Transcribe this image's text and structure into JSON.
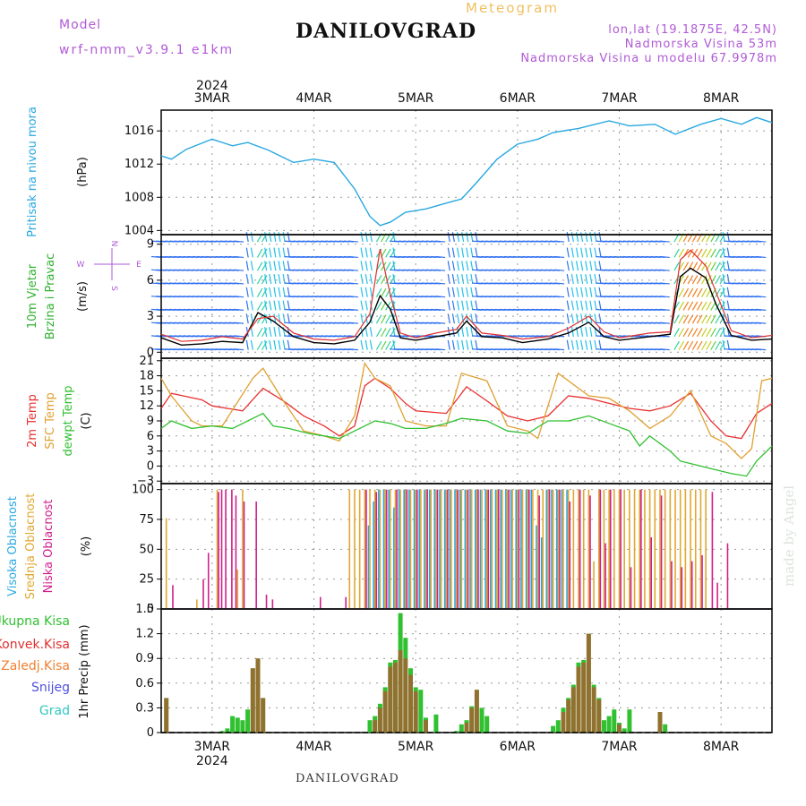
{
  "header": {
    "model_label": "Model",
    "model_name": "wrf-nmm_v3.9.1  e1km",
    "station": "DANILOVGRAD",
    "chart_kind": "Meteogram",
    "coords": "lon,lat (19.1875E, 42.5N)",
    "altitude": "Nadmorska Visina 53m",
    "model_altitude": "Nadmorska Visina u modelu 67.9978m",
    "year": "2024",
    "credit": "made by Angel",
    "footer": "DANILOVGRAD"
  },
  "chart_data": [
    {
      "type": "line",
      "title": "Pritisak na nivou mora",
      "ylabel": "(hPa)",
      "ylim": [
        1003.5,
        1018.5
      ],
      "yticks": [
        1004,
        1008,
        1012,
        1016
      ],
      "categories": [
        "3MAR",
        "4MAR",
        "5MAR",
        "6MAR",
        "7MAR",
        "8MAR"
      ],
      "series": [
        {
          "color": "#29a8e0",
          "x": [
            2.5,
            2.6,
            2.75,
            3.0,
            3.2,
            3.35,
            3.55,
            3.8,
            4.0,
            4.2,
            4.4,
            4.55,
            4.65,
            4.75,
            4.9,
            5.1,
            5.3,
            5.45,
            5.6,
            5.8,
            6.0,
            6.2,
            6.35,
            6.6,
            6.9,
            7.1,
            7.35,
            7.55,
            7.8,
            8.0,
            8.2,
            8.35,
            8.5
          ],
          "y": [
            1013.0,
            1012.6,
            1013.8,
            1015.0,
            1014.2,
            1014.6,
            1013.7,
            1012.2,
            1012.6,
            1012.2,
            1009.0,
            1005.7,
            1004.6,
            1005.0,
            1006.2,
            1006.6,
            1007.3,
            1007.8,
            1009.8,
            1012.6,
            1014.4,
            1015.0,
            1015.8,
            1016.3,
            1017.2,
            1016.6,
            1016.8,
            1015.6,
            1016.8,
            1017.5,
            1016.8,
            1017.6,
            1017.0
          ]
        }
      ]
    },
    {
      "type": "line",
      "title": "10m Vjetar Brzina i Pravac",
      "ylabel": "(m/s)",
      "ylim": [
        -0.5,
        9.8
      ],
      "yticks": [
        0,
        3,
        6,
        9
      ],
      "compass": [
        "N",
        "W",
        "E",
        "S"
      ],
      "barb_colors": [
        "#8a2be2",
        "#3070f0",
        "#20c0e8",
        "#30d0a0",
        "#60d040",
        "#c0d020",
        "#f08020",
        "#e02020"
      ],
      "series": [
        {
          "name": "speed",
          "color": "#000000",
          "x": [
            2.5,
            2.7,
            2.9,
            3.1,
            3.3,
            3.45,
            3.6,
            3.8,
            4.0,
            4.2,
            4.4,
            4.55,
            4.65,
            4.75,
            4.85,
            5.0,
            5.2,
            5.4,
            5.5,
            5.65,
            5.85,
            6.05,
            6.3,
            6.5,
            6.7,
            6.85,
            7.0,
            7.3,
            7.5,
            7.6,
            7.7,
            7.85,
            7.95,
            8.1,
            8.3,
            8.5
          ],
          "y": [
            1.2,
            0.6,
            0.7,
            0.9,
            0.8,
            3.3,
            2.6,
            1.3,
            0.8,
            0.7,
            1.0,
            2.5,
            4.7,
            3.6,
            1.2,
            1.0,
            1.3,
            1.6,
            2.6,
            1.3,
            1.2,
            0.8,
            1.1,
            1.6,
            2.5,
            1.3,
            1.0,
            1.3,
            1.5,
            6.3,
            7.0,
            6.2,
            4.0,
            1.4,
            1.0,
            1.1
          ]
        },
        {
          "name": "gust",
          "color": "#e03030",
          "x": [
            2.5,
            2.7,
            2.9,
            3.1,
            3.3,
            3.45,
            3.6,
            3.8,
            4.0,
            4.2,
            4.4,
            4.55,
            4.65,
            4.75,
            4.85,
            5.0,
            5.2,
            5.4,
            5.5,
            5.65,
            5.85,
            6.05,
            6.3,
            6.5,
            6.7,
            6.85,
            7.0,
            7.3,
            7.5,
            7.6,
            7.7,
            7.85,
            7.95,
            8.1,
            8.3,
            8.5
          ],
          "y": [
            1.5,
            0.9,
            1.0,
            1.3,
            1.1,
            2.8,
            3.0,
            1.6,
            1.1,
            1.0,
            1.3,
            3.2,
            8.6,
            4.8,
            1.6,
            1.2,
            1.6,
            1.9,
            3.0,
            1.6,
            1.4,
            1.1,
            1.3,
            2.0,
            3.0,
            1.7,
            1.2,
            1.6,
            1.7,
            7.7,
            8.5,
            7.2,
            5.0,
            1.8,
            1.2,
            1.4
          ]
        }
      ]
    },
    {
      "type": "line",
      "title": "2m Temp / SFC Temp / dewpt Temp",
      "ylabel": "(C)",
      "ylim": [
        -3.5,
        21.5
      ],
      "yticks": [
        -3,
        0,
        3,
        6,
        9,
        12,
        15,
        18,
        21
      ],
      "series": [
        {
          "name": "2m Temp",
          "color": "#e83030",
          "x": [
            2.5,
            2.6,
            2.9,
            3.0,
            3.3,
            3.5,
            3.7,
            3.9,
            4.1,
            4.25,
            4.4,
            4.5,
            4.6,
            4.75,
            4.9,
            5.0,
            5.3,
            5.5,
            5.7,
            5.9,
            6.1,
            6.3,
            6.5,
            6.7,
            6.9,
            7.1,
            7.3,
            7.5,
            7.7,
            7.9,
            8.05,
            8.2,
            8.35,
            8.5
          ],
          "y": [
            11.5,
            14.5,
            13.2,
            12.0,
            11.0,
            15.5,
            13.0,
            10.0,
            8.0,
            6.0,
            8.0,
            16.0,
            17.5,
            15.5,
            12.5,
            11.0,
            10.5,
            15.8,
            13.0,
            10.0,
            9.0,
            10.0,
            14.0,
            13.5,
            12.5,
            11.5,
            11.0,
            12.0,
            14.5,
            9.0,
            6.0,
            5.5,
            10.5,
            12.5
          ]
        },
        {
          "name": "SFC Temp",
          "color": "#e0a030",
          "x": [
            2.5,
            2.6,
            2.8,
            2.9,
            3.1,
            3.4,
            3.5,
            3.7,
            3.9,
            4.1,
            4.25,
            4.4,
            4.5,
            4.6,
            4.75,
            4.9,
            5.1,
            5.3,
            5.45,
            5.7,
            5.9,
            6.1,
            6.2,
            6.3,
            6.4,
            6.7,
            6.9,
            7.1,
            7.3,
            7.5,
            7.7,
            7.9,
            8.05,
            8.2,
            8.3,
            8.4,
            8.5
          ],
          "y": [
            17.5,
            14.0,
            9.0,
            8.0,
            8.0,
            17.5,
            19.5,
            13.0,
            7.0,
            6.0,
            5.0,
            10.0,
            20.5,
            17.5,
            16.0,
            9.0,
            8.0,
            8.0,
            18.5,
            17.0,
            8.0,
            7.0,
            5.5,
            12.0,
            18.5,
            14.0,
            13.5,
            11.0,
            7.5,
            10.0,
            15.0,
            6.0,
            4.5,
            1.5,
            3.5,
            17.0,
            17.5
          ]
        },
        {
          "name": "dewpt Temp",
          "color": "#30c030",
          "x": [
            2.5,
            2.6,
            2.8,
            3.0,
            3.2,
            3.5,
            3.6,
            3.75,
            3.95,
            4.1,
            4.25,
            4.4,
            4.6,
            4.75,
            4.9,
            5.1,
            5.3,
            5.45,
            5.7,
            5.9,
            6.1,
            6.3,
            6.5,
            6.7,
            6.9,
            7.1,
            7.2,
            7.3,
            7.5,
            7.6,
            7.7,
            7.9,
            8.1,
            8.25,
            8.35,
            8.5
          ],
          "y": [
            7.5,
            9.0,
            7.5,
            8.0,
            7.5,
            10.5,
            8.0,
            7.5,
            6.5,
            6.0,
            5.5,
            7.0,
            9.0,
            8.5,
            7.5,
            7.5,
            8.5,
            9.5,
            9.0,
            7.0,
            6.5,
            9.0,
            9.0,
            10.0,
            8.5,
            7.0,
            4.0,
            6.0,
            3.0,
            1.0,
            0.5,
            -0.5,
            -1.5,
            -2.0,
            1.0,
            4.0
          ]
        }
      ]
    },
    {
      "type": "bar",
      "title": "Visoka Oblacnost / Srednja Oblacnost / Niska Oblacnost",
      "ylabel": "(%)",
      "ylim": [
        0,
        105
      ],
      "yticks": [
        0,
        25,
        50,
        75,
        100
      ],
      "series": [
        {
          "name": "Visoka Oblacnost",
          "color": "#29a8e0",
          "x": [
            4.55,
            4.6,
            4.65,
            4.7,
            4.75,
            4.8,
            4.85,
            4.9,
            4.95,
            5.0,
            5.05,
            5.1,
            5.15,
            5.2,
            5.25,
            5.3,
            5.35,
            5.4,
            5.45,
            5.5,
            5.55,
            5.6,
            5.65,
            5.7,
            5.75,
            5.8,
            5.85,
            5.9,
            5.95,
            6.0,
            6.05,
            6.1,
            6.15,
            6.2,
            6.25,
            6.3,
            6.35,
            6.4,
            6.45,
            6.5
          ],
          "y": [
            70,
            90,
            100,
            100,
            100,
            85,
            100,
            100,
            100,
            100,
            100,
            100,
            100,
            100,
            100,
            100,
            100,
            100,
            100,
            100,
            100,
            100,
            100,
            100,
            100,
            100,
            100,
            100,
            100,
            100,
            100,
            100,
            100,
            70,
            60,
            100,
            100,
            100,
            100,
            100
          ]
        },
        {
          "name": "Srednja Oblacnost",
          "color": "#e0a830",
          "x": [
            2.55,
            2.85,
            3.05,
            3.25,
            3.3,
            4.35,
            4.4,
            4.45,
            4.5,
            4.55,
            4.6,
            4.65,
            4.7,
            4.75,
            4.8,
            4.85,
            4.9,
            4.95,
            5.0,
            5.05,
            5.1,
            5.15,
            5.2,
            5.25,
            5.3,
            5.35,
            5.4,
            5.45,
            5.5,
            5.55,
            5.6,
            5.65,
            5.7,
            5.75,
            5.8,
            5.85,
            5.9,
            5.95,
            6.0,
            6.05,
            6.1,
            6.15,
            6.2,
            6.25,
            6.3,
            6.35,
            6.4,
            6.45,
            6.5,
            6.55,
            6.6,
            6.65,
            6.7,
            6.75,
            6.8,
            6.85,
            6.9,
            6.95,
            7.0,
            7.05,
            7.1,
            7.15,
            7.2,
            7.25,
            7.3,
            7.35,
            7.4,
            7.45,
            7.5,
            7.55,
            7.6,
            7.65,
            7.7,
            7.75,
            7.8,
            7.85
          ],
          "y": [
            76,
            8,
            100,
            33,
            100,
            100,
            100,
            100,
            100,
            100,
            100,
            100,
            100,
            100,
            100,
            100,
            100,
            100,
            100,
            100,
            100,
            100,
            100,
            100,
            100,
            100,
            100,
            100,
            100,
            100,
            100,
            100,
            100,
            100,
            100,
            100,
            100,
            100,
            100,
            100,
            100,
            100,
            100,
            100,
            100,
            100,
            100,
            100,
            100,
            100,
            100,
            100,
            100,
            40,
            100,
            100,
            100,
            100,
            100,
            100,
            100,
            100,
            100,
            100,
            100,
            100,
            100,
            100,
            100,
            100,
            100,
            100,
            100,
            100,
            100,
            100
          ]
        },
        {
          "name": "Niska Oblacnost",
          "color": "#d0208a",
          "x": [
            2.6,
            2.9,
            2.95,
            3.05,
            3.08,
            3.12,
            3.18,
            3.22,
            3.3,
            3.42,
            3.52,
            3.58,
            4.05,
            4.3,
            4.5,
            4.6,
            4.7,
            4.8,
            4.9,
            5.0,
            5.1,
            5.2,
            5.3,
            5.4,
            5.5,
            5.6,
            5.7,
            5.8,
            5.9,
            6.0,
            6.1,
            6.2,
            6.3,
            6.4,
            6.5,
            6.6,
            6.7,
            6.8,
            6.85,
            6.9,
            7.0,
            7.1,
            7.2,
            7.3,
            7.4,
            7.5,
            7.6,
            7.7,
            7.8,
            7.9,
            7.95,
            8.05
          ],
          "y": [
            20,
            25,
            47,
            98,
            100,
            100,
            100,
            95,
            90,
            90,
            12,
            8,
            10,
            10,
            100,
            98,
            100,
            100,
            100,
            100,
            100,
            100,
            100,
            100,
            100,
            100,
            100,
            100,
            100,
            100,
            100,
            95,
            100,
            100,
            90,
            100,
            95,
            100,
            55,
            100,
            100,
            35,
            100,
            60,
            95,
            40,
            35,
            40,
            45,
            98,
            22,
            55
          ]
        }
      ]
    },
    {
      "type": "bar",
      "title": "Ukupna Kisa / Konvek.Kisa / Zaledj.Kisa / Snijeg / Grad",
      "ylabel": "1hr Precip (mm)",
      "ylim": [
        0,
        1.5
      ],
      "yticks": [
        0,
        0.3,
        0.6,
        0.9,
        1.2,
        1.5
      ],
      "legend": [
        "Ukupna Kisa",
        "Konvek.Kisa",
        "Zaledj.Kisa",
        "Snijeg",
        "Grad"
      ],
      "legend_colors": [
        "#30c030",
        "#e03030",
        "#f08030",
        "#5050e0",
        "#30c8c0"
      ],
      "series": [
        {
          "name": "Ukupna Kisa",
          "color": "#30c030",
          "x": [
            2.55,
            3.1,
            3.15,
            3.2,
            3.25,
            3.3,
            3.35,
            3.4,
            3.45,
            3.5,
            4.55,
            4.6,
            4.65,
            4.7,
            4.75,
            4.8,
            4.85,
            4.9,
            4.95,
            5.0,
            5.05,
            5.1,
            5.2,
            5.4,
            5.45,
            5.5,
            5.55,
            5.6,
            5.65,
            5.7,
            6.35,
            6.4,
            6.45,
            6.5,
            6.55,
            6.6,
            6.65,
            6.7,
            6.75,
            6.8,
            6.85,
            6.9,
            6.95,
            7.0,
            7.05,
            7.1,
            7.4,
            7.45
          ],
          "y": [
            0.42,
            0.02,
            0.05,
            0.2,
            0.18,
            0.15,
            0.28,
            0.78,
            0.9,
            0.42,
            0.15,
            0.2,
            0.35,
            0.55,
            0.85,
            0.88,
            1.45,
            1.15,
            0.78,
            0.55,
            0.52,
            0.18,
            0.22,
            0.02,
            0.1,
            0.15,
            0.32,
            0.52,
            0.3,
            0.2,
            0.08,
            0.15,
            0.3,
            0.42,
            0.58,
            0.85,
            0.88,
            1.2,
            0.58,
            0.42,
            0.15,
            0.2,
            0.28,
            0.12,
            0.05,
            0.28,
            0.25,
            0.1
          ]
        },
        {
          "name": "Konvek.Kisa",
          "color": "#e03030",
          "x": [
            2.55,
            3.4,
            3.45,
            3.5,
            4.6,
            4.65,
            4.7,
            4.75,
            4.8,
            4.85,
            4.9,
            4.95,
            5.0,
            5.1,
            5.5,
            5.55,
            5.6,
            6.45,
            6.5,
            6.55,
            6.6,
            6.65,
            6.7,
            6.75,
            6.8,
            7.0,
            7.4
          ],
          "y": [
            0.42,
            0.78,
            0.9,
            0.42,
            0.15,
            0.3,
            0.5,
            0.8,
            0.85,
            1.0,
            0.9,
            0.7,
            0.5,
            0.15,
            0.12,
            0.3,
            0.52,
            0.25,
            0.4,
            0.55,
            0.8,
            0.85,
            1.2,
            0.55,
            0.4,
            0.1,
            0.25
          ]
        }
      ]
    }
  ]
}
